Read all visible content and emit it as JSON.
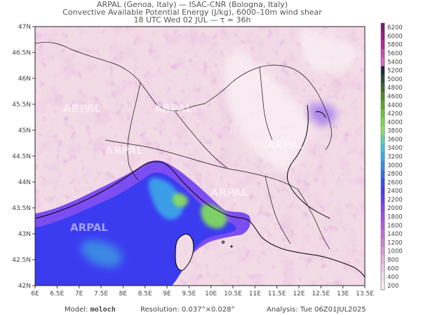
{
  "header": {
    "line1": "ARPAL (Genoa, Italy)  —  ISAC-CNR (Bologna, Italy)",
    "line2": "Convective Available Potential Energy (J/kg), 6000–10m wind shear",
    "line3": "18 UTC Wed 02 JUL  —  τ = 36h"
  },
  "map": {
    "lat_labels": [
      "47N",
      "46.5N",
      "46N",
      "45.5N",
      "45N",
      "44.5N",
      "44N",
      "43.5N",
      "43N",
      "42.5N",
      "42N"
    ],
    "lon_labels": [
      "6E",
      "6.5E",
      "7E",
      "7.5E",
      "8E",
      "8.5E",
      "9E",
      "9.5E",
      "10E",
      "10.5E",
      "11E",
      "11.5E",
      "12E",
      "12.5E",
      "13E",
      "13.5E"
    ],
    "watermark": "ARPAL",
    "colors": {
      "sea_high": "#3b3cf0",
      "sea_mid": "#7a4ff0",
      "hot_green": "#8fe05a",
      "cyan": "#3ec8d8",
      "land_low": "#f4e0e8",
      "land_mid": "#e6b0d2",
      "border": "#000000"
    }
  },
  "colorbar": {
    "labels": [
      "6200",
      "6000",
      "5800",
      "5600",
      "5400",
      "5200",
      "5000",
      "4800",
      "4600",
      "4400",
      "4200",
      "4000",
      "3800",
      "3600",
      "3400",
      "3200",
      "3000",
      "2800",
      "2600",
      "2400",
      "2200",
      "2000",
      "1800",
      "1600",
      "1400",
      "1200",
      "1000",
      "800",
      "600",
      "400",
      "200"
    ],
    "colors": [
      "#7d1a6e",
      "#9a1f86",
      "#b8259c",
      "#c84fb0",
      "#d36cbf",
      "#1a2a3a",
      "#2f4a3a",
      "#3e6a2a",
      "#4f8a2a",
      "#5ea82c",
      "#6ec43a",
      "#7ed84c",
      "#92e06a",
      "#5fd6a8",
      "#3ec8d8",
      "#3aaee6",
      "#3a8ee8",
      "#3a6ce8",
      "#3b4ff0",
      "#4a3cf0",
      "#6a3ef0",
      "#8a46ee",
      "#a24fe6",
      "#b45cdc",
      "#c46ed6",
      "#d083d4",
      "#dc9cd8",
      "#e6b4de",
      "#eecbe6",
      "#f5dfee",
      "#fbeff6"
    ]
  },
  "footer": {
    "model_label": "Model:",
    "model_value": "moloch",
    "resolution_label": "Resolution:",
    "resolution_value": "0.037°×0.028°",
    "analysis_label": "Analysis:",
    "analysis_value": "Tue 06Z01JUL2025"
  }
}
